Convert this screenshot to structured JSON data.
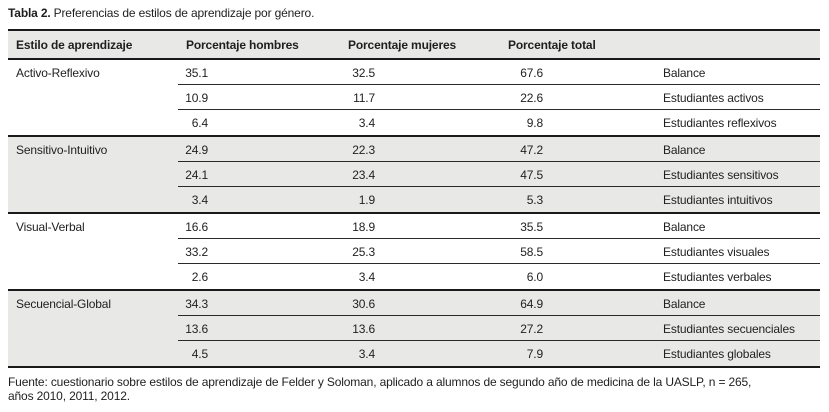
{
  "title": {
    "label": "Tabla 2.",
    "text": "Preferencias de estilos de aprendizaje por género."
  },
  "colors": {
    "header_bg": "#e8e8e6",
    "shaded_group_bg": "#e8e8e6",
    "rule_heavy": "#1a1a1a",
    "rule_light": "#2a2a2a",
    "text": "#1f1f1f"
  },
  "table": {
    "columns": [
      "Estilo de aprendizaje",
      "Porcentaje hombres",
      "Porcentaje mujeres",
      "Porcentaje total",
      ""
    ],
    "groups": [
      {
        "style": "Activo-Reflexivo",
        "rows": [
          {
            "hombres": "35.1",
            "mujeres": "32.5",
            "total": "67.6",
            "categoria": "Balance"
          },
          {
            "hombres": "10.9",
            "mujeres": "11.7",
            "total": "22.6",
            "categoria": "Estudiantes activos"
          },
          {
            "hombres": "6.4",
            "mujeres": "3.4",
            "total": "9.8",
            "categoria": "Estudiantes reflexivos"
          }
        ]
      },
      {
        "style": "Sensitivo-Intuitivo",
        "rows": [
          {
            "hombres": "24.9",
            "mujeres": "22.3",
            "total": "47.2",
            "categoria": "Balance"
          },
          {
            "hombres": "24.1",
            "mujeres": "23.4",
            "total": "47.5",
            "categoria": "Estudiantes sensitivos"
          },
          {
            "hombres": "3.4",
            "mujeres": "1.9",
            "total": "5.3",
            "categoria": "Estudiantes intuitivos"
          }
        ]
      },
      {
        "style": "Visual-Verbal",
        "rows": [
          {
            "hombres": "16.6",
            "mujeres": "18.9",
            "total": "35.5",
            "categoria": "Balance"
          },
          {
            "hombres": "33.2",
            "mujeres": "25.3",
            "total": "58.5",
            "categoria": "Estudiantes visuales"
          },
          {
            "hombres": "2.6",
            "mujeres": "3.4",
            "total": "6.0",
            "categoria": "Estudiantes verbales"
          }
        ]
      },
      {
        "style": "Secuencial-Global",
        "rows": [
          {
            "hombres": "34.3",
            "mujeres": "30.6",
            "total": "64.9",
            "categoria": "Balance"
          },
          {
            "hombres": "13.6",
            "mujeres": "13.6",
            "total": "27.2",
            "categoria": "Estudiantes secuenciales"
          },
          {
            "hombres": "4.5",
            "mujeres": "3.4",
            "total": "7.9",
            "categoria": "Estudiantes globales"
          }
        ]
      }
    ]
  },
  "footer": {
    "line1": "Fuente: cuestionario sobre estilos de aprendizaje de Felder y Soloman, aplicado a alumnos de segundo año de medicina de la UASLP, n = 265,",
    "line2": "años 2010, 2011, 2012."
  }
}
